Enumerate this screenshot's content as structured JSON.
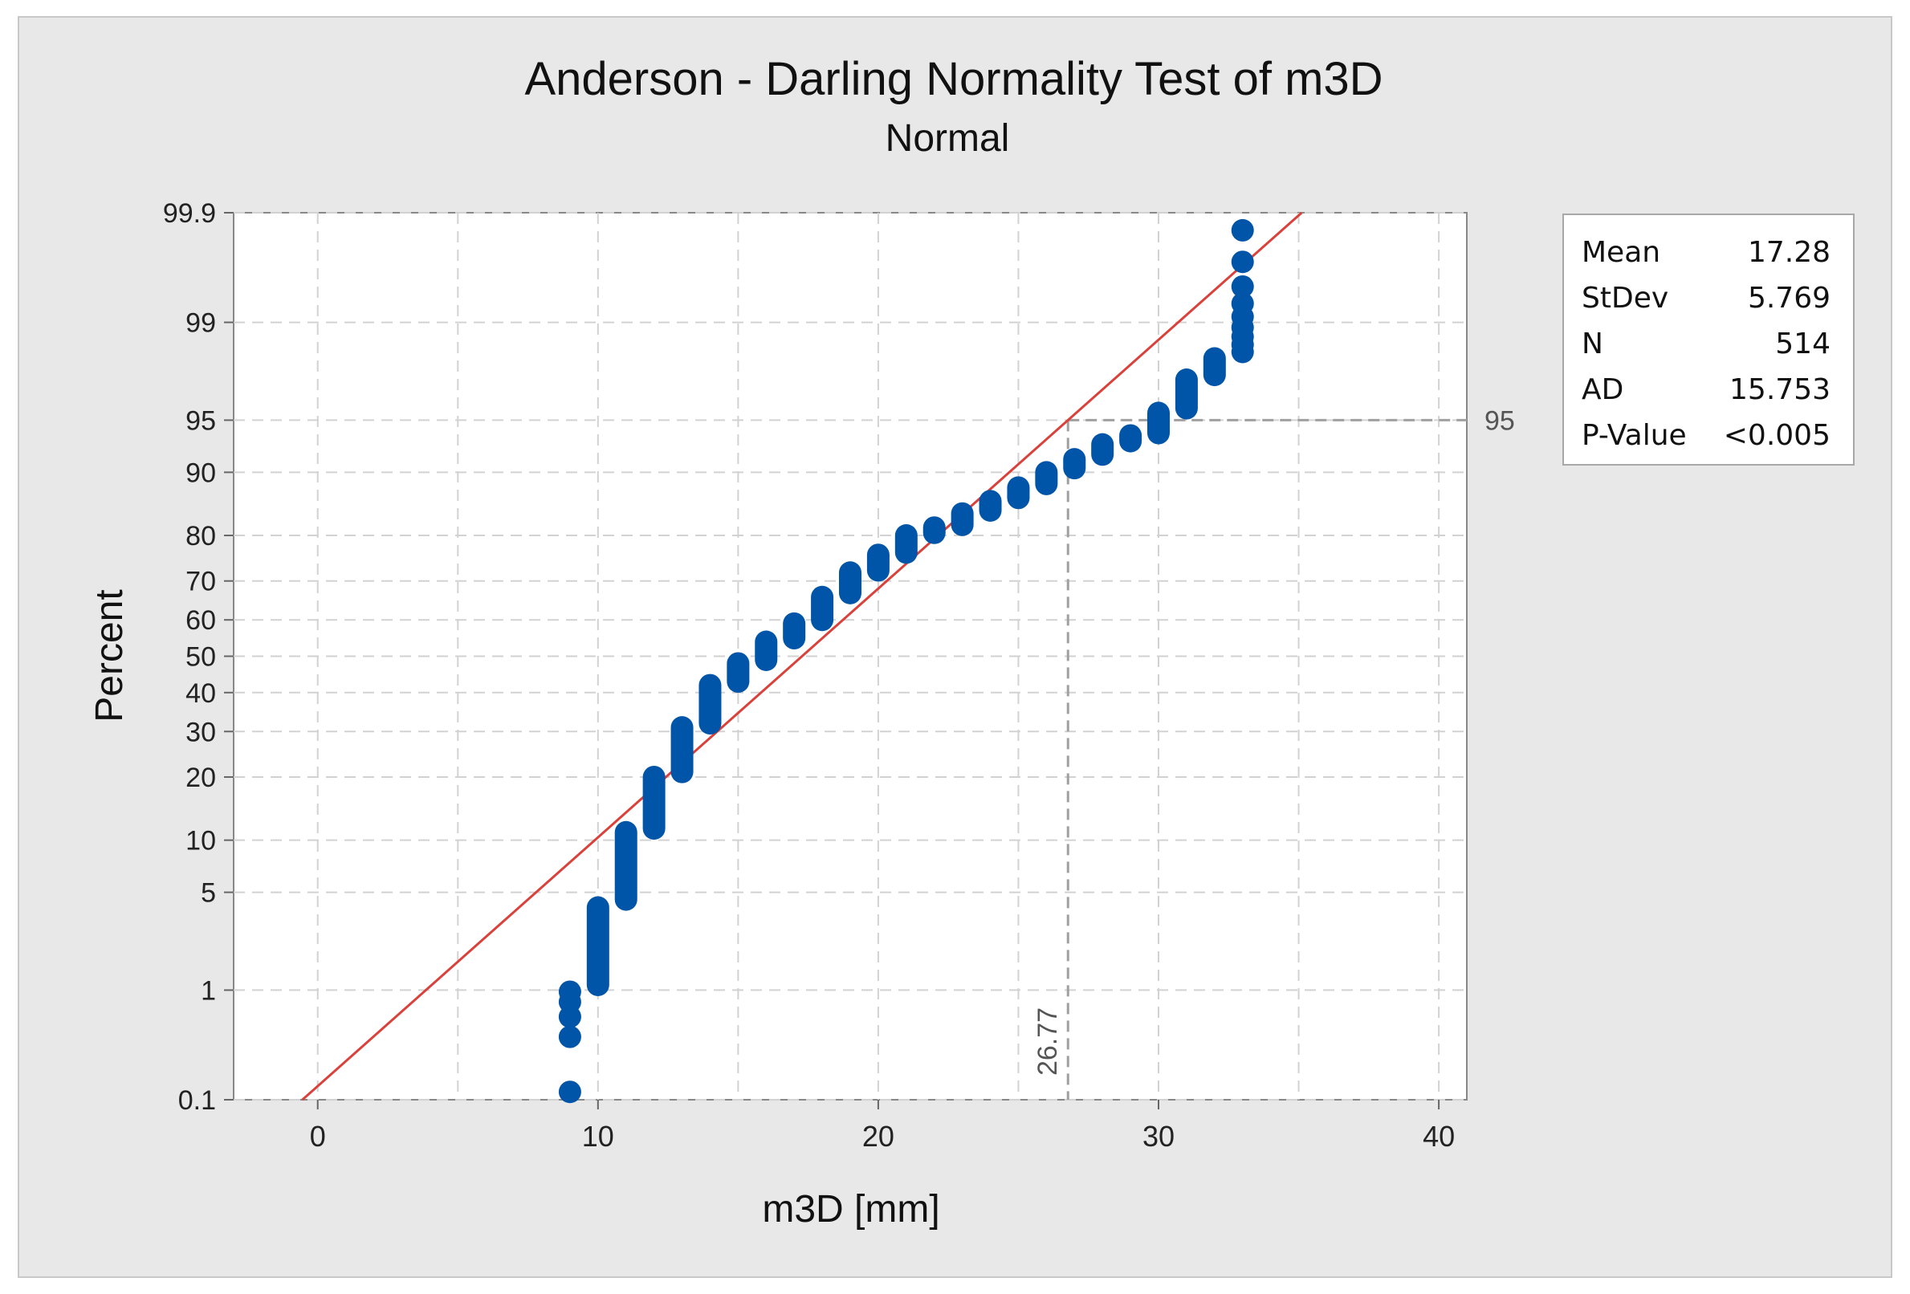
{
  "chart_data": {
    "type": "scatter",
    "title": "Anderson - Darling Normality Test  of m3D",
    "subtitle": "Normal",
    "xlabel": "m3D [mm]",
    "ylabel": "Percent",
    "xlim": [
      -3,
      41
    ],
    "ylim_percent": [
      0.1,
      99.9
    ],
    "x_ticks": [
      0,
      10,
      20,
      30,
      40
    ],
    "x_tick_labels": [
      "0",
      "10",
      "20",
      "30",
      "40"
    ],
    "y_ticks": [
      0.1,
      1,
      5,
      10,
      20,
      30,
      40,
      50,
      60,
      70,
      80,
      90,
      95,
      99,
      99.9
    ],
    "y_tick_labels": [
      "0.1",
      "1",
      "5",
      "10",
      "20",
      "30",
      "40",
      "50",
      "60",
      "70",
      "80",
      "90",
      "95",
      "99",
      "99.9"
    ],
    "grid": true,
    "fit_line": {
      "mean": 17.28,
      "stdev": 5.769,
      "color": "#d9413a"
    },
    "reference": {
      "percent": 95,
      "percent_label": "95",
      "x": 26.77,
      "x_label": "26.77"
    },
    "point_color": "#0055a8",
    "points": [
      {
        "x": 9,
        "percent": [
          0.12,
          0.4,
          0.6,
          0.8,
          0.97
        ]
      },
      {
        "x": 10,
        "percent_range": [
          1.1,
          4.0
        ]
      },
      {
        "x": 11,
        "percent_range": [
          4.5,
          11.0
        ]
      },
      {
        "x": 12,
        "percent_range": [
          11.5,
          20.0
        ]
      },
      {
        "x": 13,
        "percent_range": [
          21.0,
          31.0
        ]
      },
      {
        "x": 14,
        "percent_range": [
          32.0,
          42.0
        ]
      },
      {
        "x": 15,
        "percent_range": [
          43.0,
          48.0
        ]
      },
      {
        "x": 16,
        "percent_range": [
          49.0,
          54.0
        ]
      },
      {
        "x": 17,
        "percent_range": [
          55.0,
          59.0
        ]
      },
      {
        "x": 18,
        "percent_range": [
          60.0,
          66.0
        ]
      },
      {
        "x": 19,
        "percent_range": [
          67.0,
          72.0
        ]
      },
      {
        "x": 20,
        "percent_range": [
          72.5,
          76.0
        ]
      },
      {
        "x": 21,
        "percent_range": [
          76.5,
          80.0
        ]
      },
      {
        "x": 22,
        "percent_range": [
          80.5,
          81.5
        ]
      },
      {
        "x": 23,
        "percent_range": [
          82.0,
          84.0
        ]
      },
      {
        "x": 24,
        "percent_range": [
          84.5,
          86.0
        ]
      },
      {
        "x": 25,
        "percent_range": [
          86.5,
          88.0
        ]
      },
      {
        "x": 26,
        "percent_range": [
          88.5,
          90.0
        ]
      },
      {
        "x": 27,
        "percent_range": [
          90.5,
          91.5
        ]
      },
      {
        "x": 28,
        "percent_range": [
          92.0,
          93.0
        ]
      },
      {
        "x": 29,
        "percent_range": [
          93.3,
          93.8
        ]
      },
      {
        "x": 30,
        "percent_range": [
          94.0,
          95.5
        ]
      },
      {
        "x": 31,
        "percent_range": [
          95.8,
          97.3
        ]
      },
      {
        "x": 32,
        "percent_range": [
          97.5,
          98.1
        ]
      },
      {
        "x": 33,
        "percent": [
          98.3,
          98.5,
          98.7,
          98.9,
          99.1,
          99.3,
          99.5,
          99.7,
          99.85
        ]
      }
    ]
  },
  "stats": [
    {
      "label": "Mean",
      "value": "17.28"
    },
    {
      "label": "StDev",
      "value": "5.769"
    },
    {
      "label": "N",
      "value": "514"
    },
    {
      "label": "AD",
      "value": "15.753"
    },
    {
      "label": "P-Value",
      "value": "<0.005"
    }
  ]
}
